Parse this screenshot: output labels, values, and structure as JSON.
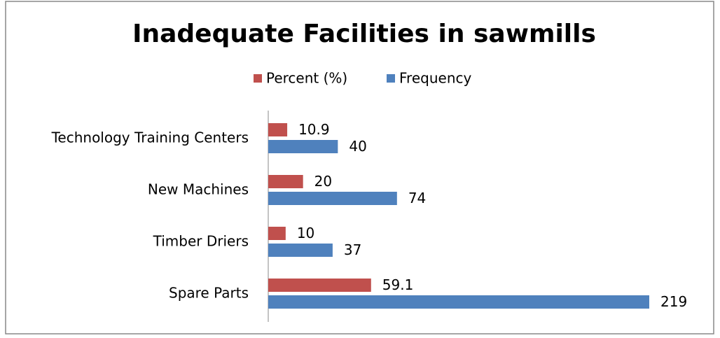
{
  "chart_data": {
    "type": "barh",
    "title": "Inadequate Facilities in sawmills",
    "categories": [
      "Technology Training Centers",
      "New Machines",
      "Timber Driers",
      "Spare Parts"
    ],
    "series": [
      {
        "name": "Percent (%)",
        "color": "#c0504d",
        "values": [
          10.9,
          20,
          10,
          59.1
        ]
      },
      {
        "name": "Frequency",
        "color": "#4f81bd",
        "values": [
          40,
          74,
          37,
          219
        ]
      }
    ]
  }
}
